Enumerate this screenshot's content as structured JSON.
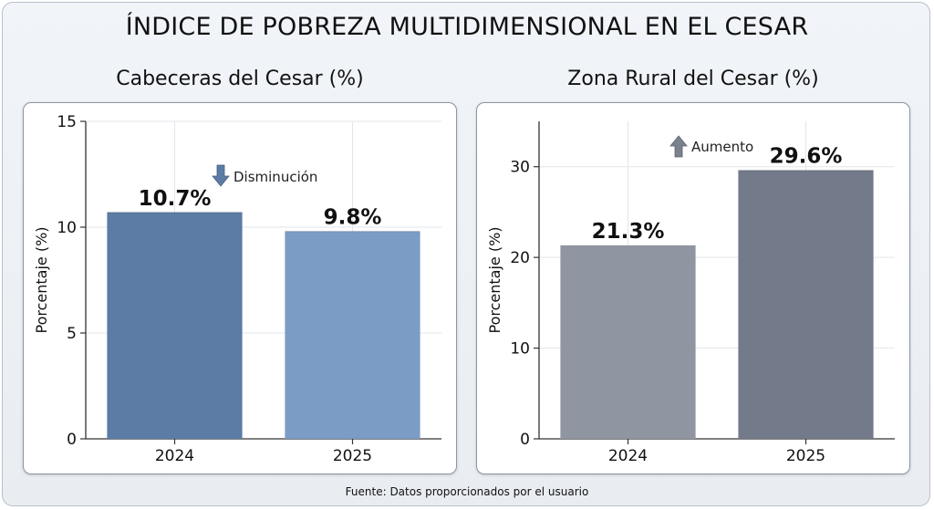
{
  "title": "ÍNDICE DE POBREZA MULTIDIMENSIONAL EN EL CESAR",
  "source": "Fuente: Datos proporcionados por el usuario",
  "chart_data": [
    {
      "type": "bar",
      "title": "Cabeceras del Cesar (%)",
      "categories": [
        "2024",
        "2025"
      ],
      "values": [
        10.7,
        9.8
      ],
      "value_labels": [
        "10.7%",
        "9.8%"
      ],
      "colors": [
        "#5c7ca6",
        "#7b9cc4"
      ],
      "ylabel": "Porcentaje (%)",
      "xlabel": "",
      "ylim": [
        0,
        15
      ],
      "yticks": [
        0,
        5,
        10,
        15
      ],
      "grid": true,
      "annotation": {
        "text": "Disminución",
        "direction": "down",
        "color": "#5c7ca6"
      }
    },
    {
      "type": "bar",
      "title": "Zona Rural del Cesar (%)",
      "categories": [
        "2024",
        "2025"
      ],
      "values": [
        21.3,
        29.6
      ],
      "value_labels": [
        "21.3%",
        "29.6%"
      ],
      "colors": [
        "#8f96a1",
        "#737b8a"
      ],
      "ylabel": "Porcentaje (%)",
      "xlabel": "",
      "ylim": [
        0,
        35
      ],
      "yticks": [
        0,
        10,
        20,
        30
      ],
      "grid": true,
      "annotation": {
        "text": "Aumento",
        "direction": "up",
        "color": "#7b828e"
      }
    }
  ]
}
